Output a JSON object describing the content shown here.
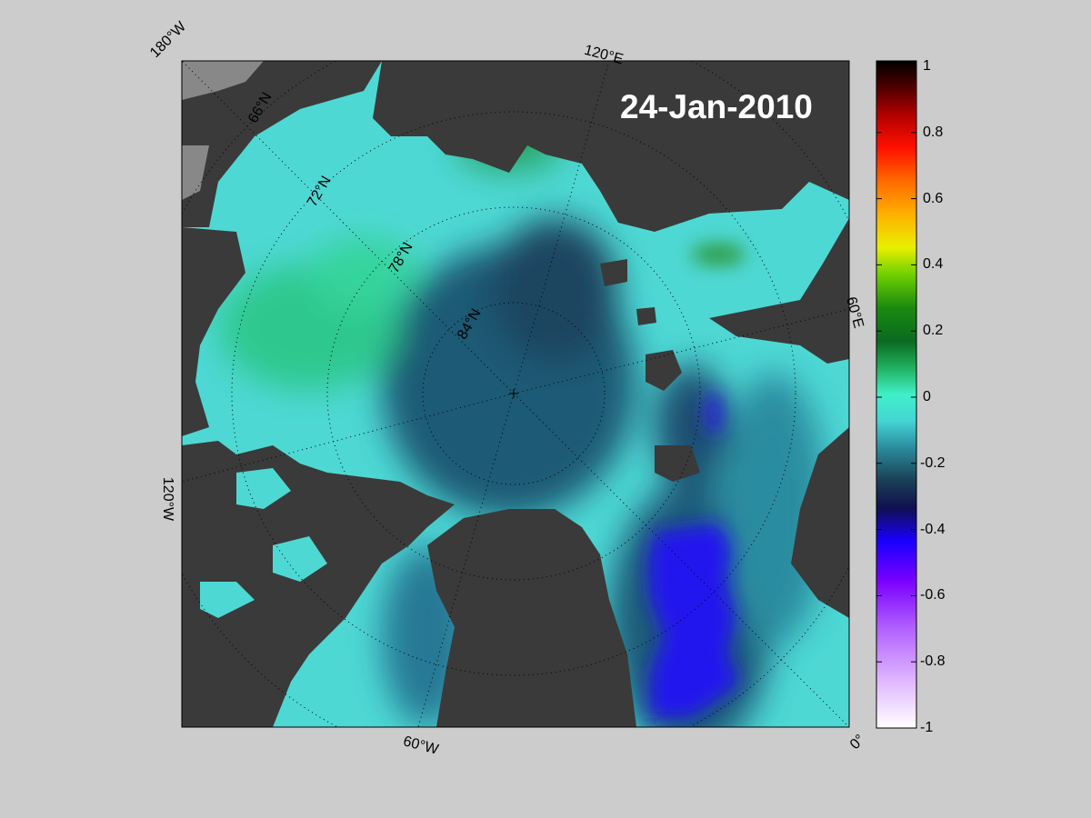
{
  "map": {
    "date_label": "24-Jan-2010",
    "meridian_labels": {
      "w180": "180°W",
      "e120": "120°E",
      "e60": "60°E",
      "w120": "120°W",
      "w60": "60°W",
      "zero": "0°"
    },
    "parallel_labels": {
      "n66": "66°N",
      "n72": "72°N",
      "n78": "78°N",
      "n84": "84°N"
    },
    "colors": {
      "background": "#cccccc",
      "land": "#3a3a3a",
      "ocean_cyan": "#4fe0d8",
      "deep_blue": "#1e4e66",
      "purple_blue": "#2a1de8",
      "green": "#2ea84a"
    }
  },
  "colorbar": {
    "ticks": [
      "1",
      "0.8",
      "0.6",
      "0.4",
      "0.2",
      "0",
      "-0.2",
      "-0.4",
      "-0.6",
      "-0.8",
      "-1"
    ],
    "min": -1,
    "max": 1,
    "colormap": [
      "#ffffff",
      "#c080ff",
      "#8000ff",
      "#1a00ff",
      "#0a0a40",
      "#2a8ca0",
      "#4ff0f0",
      "#20c070",
      "#006000",
      "#80ff00",
      "#ffff00",
      "#ff8000",
      "#ff0000",
      "#800000",
      "#000000"
    ]
  }
}
